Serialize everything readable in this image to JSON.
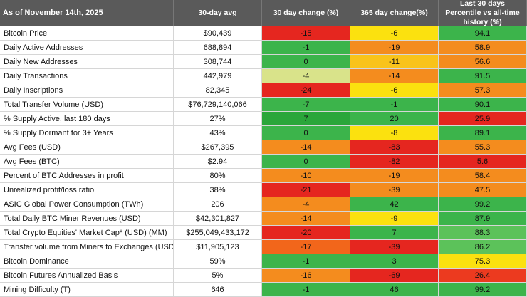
{
  "table": {
    "columns": [
      "As of November 14th, 2025",
      "30-day avg",
      "30 day change (%)",
      "365 day change(%)",
      "Last 30 days Percentile vs all-time history (%)"
    ],
    "rows": [
      {
        "cells": [
          "Bitcoin Price",
          "$90,439",
          "-15",
          "-6",
          "94.1"
        ],
        "colors": [
          "#e5261f",
          "#fbe10f",
          "#3cb44b"
        ]
      },
      {
        "cells": [
          "Daily Active Addresses",
          "688,894",
          "-1",
          "-19",
          "58.9"
        ],
        "colors": [
          "#3cb44b",
          "#f48c1e",
          "#f48c1e"
        ]
      },
      {
        "cells": [
          "Daily New Addresses",
          "308,744",
          "0",
          "-11",
          "56.6"
        ],
        "colors": [
          "#3cb44b",
          "#f9c31a",
          "#f48c1e"
        ]
      },
      {
        "cells": [
          "Daily Transactions",
          "442,979",
          "-4",
          "-14",
          "91.5"
        ],
        "colors": [
          "#d9e38a",
          "#f48c1e",
          "#3cb44b"
        ]
      },
      {
        "cells": [
          "Daily Inscriptions",
          "82,345",
          "-24",
          "-6",
          "57.3"
        ],
        "colors": [
          "#e5261f",
          "#fbe10f",
          "#f48c1e"
        ]
      },
      {
        "cells": [
          "Total Transfer Volume (USD)",
          "$76,729,140,066",
          "-7",
          "-1",
          "90.1"
        ],
        "colors": [
          "#3cb44b",
          "#3cb44b",
          "#3cb44b"
        ]
      },
      {
        "cells": [
          "% Supply Active, last 180 days",
          "27%",
          "7",
          "20",
          "25.9"
        ],
        "colors": [
          "#2aa63a",
          "#3cb44b",
          "#e5261f"
        ]
      },
      {
        "cells": [
          "% Supply Dormant for 3+ Years",
          "43%",
          "0",
          "-8",
          "89.1"
        ],
        "colors": [
          "#3cb44b",
          "#fbe10f",
          "#3cb44b"
        ]
      },
      {
        "cells": [
          "Avg Fees (USD)",
          "$267,395",
          "-14",
          "-83",
          "55.3"
        ],
        "colors": [
          "#f48c1e",
          "#e5261f",
          "#f48c1e"
        ]
      },
      {
        "cells": [
          "Avg Fees (BTC)",
          "$2.94",
          "0",
          "-82",
          "5.6"
        ],
        "colors": [
          "#3cb44b",
          "#e5261f",
          "#e5261f"
        ]
      },
      {
        "cells": [
          "Percent of BTC Addresses in profit",
          "80%",
          "-10",
          "-19",
          "58.4"
        ],
        "colors": [
          "#f48c1e",
          "#f48c1e",
          "#f48c1e"
        ]
      },
      {
        "cells": [
          "Unrealized profit/loss ratio",
          "38%",
          "-21",
          "-39",
          "47.5"
        ],
        "colors": [
          "#e5261f",
          "#f48c1e",
          "#f48c1e"
        ]
      },
      {
        "cells": [
          "ASIC Global Power Consumption (TWh)",
          "206",
          "-4",
          "42",
          "99.2"
        ],
        "colors": [
          "#f48c1e",
          "#3cb44b",
          "#3cb44b"
        ]
      },
      {
        "cells": [
          "Total Daily BTC Miner Revenues (USD)",
          "$42,301,827",
          "-14",
          "-9",
          "87.9"
        ],
        "colors": [
          "#f48c1e",
          "#fbe10f",
          "#3cb44b"
        ]
      },
      {
        "cells": [
          "Total Crypto Equities' Market Cap* (USD) (MM)",
          "$255,049,433,172",
          "-20",
          "7",
          "88.3"
        ],
        "colors": [
          "#e5261f",
          "#3cb44b",
          "#5cc25a"
        ]
      },
      {
        "cells": [
          "Transfer volume from Miners to Exchanges (USD)",
          "$11,905,123",
          "-17",
          "-39",
          "86.2"
        ],
        "colors": [
          "#f2661b",
          "#e5261f",
          "#5cc25a"
        ]
      },
      {
        "cells": [
          "Bitcoin Dominance",
          "59%",
          "-1",
          "3",
          "75.3"
        ],
        "colors": [
          "#3cb44b",
          "#3cb44b",
          "#fbe10f"
        ]
      },
      {
        "cells": [
          "Bitcoin Futures Annualized Basis",
          "5%",
          "-16",
          "-69",
          "26.4"
        ],
        "colors": [
          "#f48c1e",
          "#e5261f",
          "#ec3a1f"
        ]
      },
      {
        "cells": [
          "Mining Difficulty (T)",
          "646",
          "-1",
          "46",
          "99.2"
        ],
        "colors": [
          "#3cb44b",
          "#3cb44b",
          "#3cb44b"
        ]
      }
    ]
  }
}
